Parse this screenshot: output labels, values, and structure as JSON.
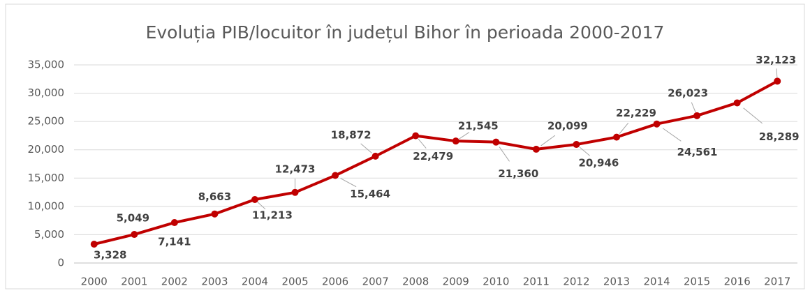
{
  "chart_data": {
    "type": "line",
    "title": "Evoluția PIB/locuitor în județul Bihor în perioada 2000-2017",
    "categories": [
      "2000",
      "2001",
      "2002",
      "2003",
      "2004",
      "2005",
      "2006",
      "2007",
      "2008",
      "2009",
      "2010",
      "2011",
      "2012",
      "2013",
      "2014",
      "2015",
      "2016",
      "2017"
    ],
    "values": [
      3328,
      5049,
      7141,
      8663,
      11213,
      12473,
      15464,
      18872,
      22479,
      21545,
      21360,
      20099,
      20946,
      22229,
      24561,
      26023,
      28289,
      32123
    ],
    "value_labels": [
      "3,328",
      "5,049",
      "7,141",
      "8,663",
      "11,213",
      "12,473",
      "15,464",
      "18,872",
      "22,479",
      "21,545",
      "21,360",
      "20,099",
      "20,946",
      "22,229",
      "24,561",
      "26,023",
      "28,289",
      "32,123"
    ],
    "color": "#c00000",
    "ylim": [
      0,
      35000
    ],
    "yticks": [
      0,
      {
        "value": 5000,
        "label": "5,000"
      },
      {
        "value": 10000,
        "label": "10,000"
      },
      {
        "value": 15000,
        "label": "15,000"
      },
      {
        "value": 20000,
        "label": "20,000"
      },
      {
        "value": 25000,
        "label": "25,000"
      },
      {
        "value": 30000,
        "label": "30,000"
      },
      {
        "value": 35000,
        "label": "35,000"
      }
    ],
    "grid": true
  }
}
